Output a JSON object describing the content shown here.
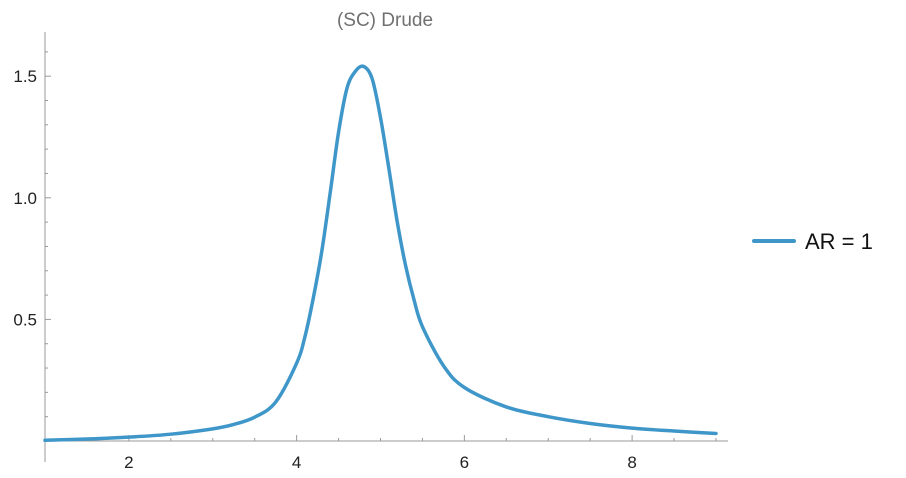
{
  "chart_data": {
    "type": "line",
    "title": "(SC) Drude",
    "xlabel": "",
    "ylabel": "",
    "xlim": [
      1,
      9
    ],
    "ylim": [
      0,
      1.62
    ],
    "x_ticks": [
      2,
      4,
      6,
      8
    ],
    "x_tick_labels": [
      "2",
      "4",
      "6",
      "8"
    ],
    "y_ticks": [
      0.5,
      1.0,
      1.5
    ],
    "y_tick_labels": [
      "0.5",
      "1.0",
      "1.5"
    ],
    "grid": false,
    "legend": "right",
    "series": [
      {
        "name": "AR = 1",
        "color": "#3f97c9",
        "x": [
          1.0,
          1.5,
          2.0,
          2.5,
          3.0,
          3.25,
          3.5,
          3.75,
          4.0,
          4.1,
          4.2,
          4.3,
          4.4,
          4.5,
          4.6,
          4.7,
          4.8,
          4.9,
          5.0,
          5.1,
          5.2,
          5.3,
          5.4,
          5.5,
          5.75,
          6.0,
          6.5,
          7.0,
          7.5,
          8.0,
          8.5,
          9.0
        ],
        "y": [
          0.003,
          0.008,
          0.016,
          0.028,
          0.05,
          0.068,
          0.098,
          0.16,
          0.32,
          0.43,
          0.59,
          0.78,
          1.02,
          1.27,
          1.45,
          1.52,
          1.54,
          1.49,
          1.33,
          1.12,
          0.9,
          0.72,
          0.58,
          0.47,
          0.31,
          0.22,
          0.14,
          0.1,
          0.072,
          0.053,
          0.041,
          0.031
        ]
      }
    ]
  }
}
